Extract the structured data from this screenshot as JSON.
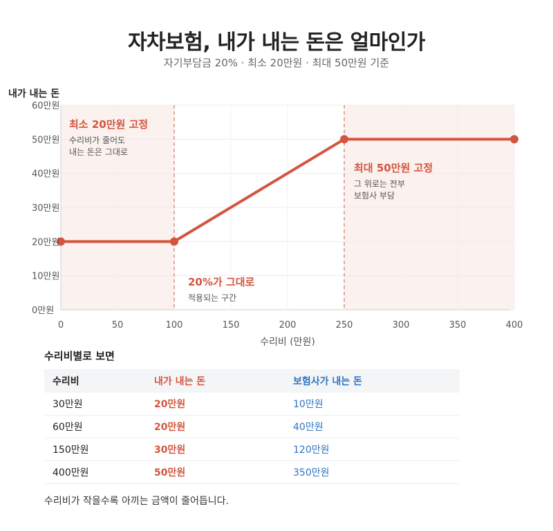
{
  "title": "자차보험, 내가 내는 돈은 얼마인가",
  "subtitle": "자기부담금 20% · 최소 20만원 · 최대 50만원 기준",
  "colors": {
    "line": "#d4553f",
    "band": "#fbf1ee",
    "mine": "#d4553f",
    "insurer": "#2e74c0"
  },
  "chart_data": {
    "type": "line",
    "ylabel": "내가 내는 돈",
    "xlabel": "수리비 (만원)",
    "xlim": [
      0,
      400
    ],
    "ylim": [
      0,
      60
    ],
    "x_ticks": [
      "0",
      "50",
      "100",
      "150",
      "200",
      "250",
      "300",
      "350",
      "400"
    ],
    "x_tick_values": [
      0,
      50,
      100,
      150,
      200,
      250,
      300,
      350,
      400
    ],
    "y_ticks": [
      "0만원",
      "10만원",
      "20만원",
      "30만원",
      "40만원",
      "50만원",
      "60만원"
    ],
    "y_tick_values": [
      0,
      10,
      20,
      30,
      40,
      50,
      60
    ],
    "grid": true,
    "series": [
      {
        "x": [
          0,
          100,
          250,
          400
        ],
        "y": [
          20,
          20,
          50,
          50
        ]
      }
    ],
    "shaded_ranges": [
      [
        0,
        100
      ],
      [
        250,
        400
      ]
    ],
    "annotations": {
      "min": {
        "title": "최소 20만원 고정",
        "line1": "수리비가 줄어도",
        "line2": "내는 돈은 그대로"
      },
      "mid": {
        "title": "20%가 그대로",
        "line1": "적용되는 구간"
      },
      "max": {
        "title": "최대 50만원 고정",
        "line1": "그 위로는 전부",
        "line2": "보험사 부담"
      }
    }
  },
  "table": {
    "title": "수리비별로 보면",
    "headers": [
      "수리비",
      "내가 내는 돈",
      "보험사가 내는 돈"
    ],
    "rows": [
      [
        "30만원",
        "20만원",
        "10만원"
      ],
      [
        "60만원",
        "20만원",
        "40만원"
      ],
      [
        "150만원",
        "30만원",
        "120만원"
      ],
      [
        "400만원",
        "50만원",
        "350만원"
      ]
    ]
  },
  "note": "수리비가 작을수록 아끼는 금액이 줄어듭니다."
}
